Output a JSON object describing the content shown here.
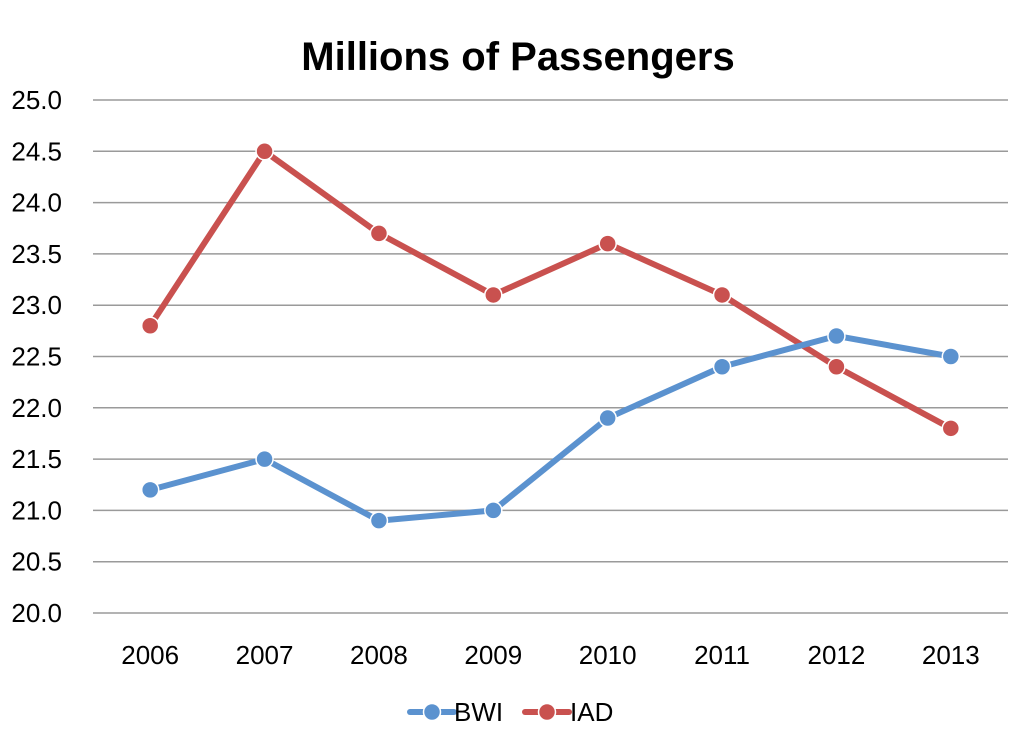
{
  "chart_data": {
    "type": "line",
    "title": "Millions of Passengers",
    "xlabel": "",
    "ylabel": "",
    "categories": [
      "2006",
      "2007",
      "2008",
      "2009",
      "2010",
      "2011",
      "2012",
      "2013"
    ],
    "y_ticks": [
      "25.0",
      "24.5",
      "24.0",
      "23.5",
      "23.0",
      "22.5",
      "22.0",
      "21.5",
      "21.0",
      "20.5",
      "20.0"
    ],
    "ylim": [
      20.0,
      25.0
    ],
    "grid": true,
    "legend_position": "bottom",
    "series": [
      {
        "name": "BWI",
        "color": "#5b92cf",
        "values": [
          21.2,
          21.5,
          20.9,
          21.0,
          21.9,
          22.4,
          22.7,
          22.5
        ]
      },
      {
        "name": "IAD",
        "color": "#c9514f",
        "values": [
          22.8,
          24.5,
          23.7,
          23.1,
          23.6,
          23.1,
          22.4,
          21.8
        ]
      }
    ]
  }
}
